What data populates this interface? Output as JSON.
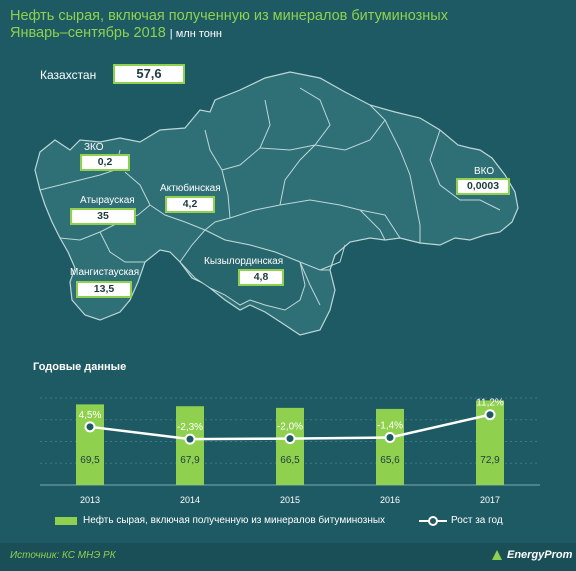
{
  "title": {
    "line1": "Нефть сырая, включая полученную из минералов битуминозных",
    "line2": "Январь–сентябрь 2018",
    "unit": "| млн тонн"
  },
  "kazakhstan": {
    "label": "Казахстан",
    "value": "57,6"
  },
  "regions": [
    {
      "name": "ЗКО",
      "value": "0,2"
    },
    {
      "name": "Атырауская",
      "value": "35"
    },
    {
      "name": "Актюбинская",
      "value": "4,2"
    },
    {
      "name": "Мангистауская",
      "value": "13,5"
    },
    {
      "name": "Кызылординская",
      "value": "4,8"
    },
    {
      "name": "ВКО",
      "value": "0,0003"
    }
  ],
  "annual_title": "Годовые данные",
  "chart_data": {
    "type": "bar",
    "categories": [
      "2013",
      "2014",
      "2015",
      "2016",
      "2017"
    ],
    "series": [
      {
        "name": "Нефть сырая, включая полученную из минералов битуминозных",
        "type": "bar",
        "values": [
          69.5,
          67.9,
          66.5,
          65.6,
          72.9
        ],
        "labels": [
          "69,5",
          "67,9",
          "66,5",
          "65,6",
          "72,9"
        ],
        "color": "#8fd14f"
      },
      {
        "name": "Рост за год",
        "type": "line",
        "values": [
          4.5,
          -2.3,
          -2.0,
          -1.4,
          11.2
        ],
        "labels": [
          "4,5%",
          "-2,3%",
          "-2,0%",
          "-1,4%",
          "11,2%"
        ],
        "color": "#ffffff"
      }
    ],
    "grid": true,
    "legend": "bottom"
  },
  "source": "Источник: КС МНЭ РК",
  "logo": "EnergyProm",
  "colors": {
    "background": "#1e5a63",
    "accent": "#8fd14f",
    "region_fill": "#2f6f76",
    "region_stroke": "#bcd7d9"
  }
}
